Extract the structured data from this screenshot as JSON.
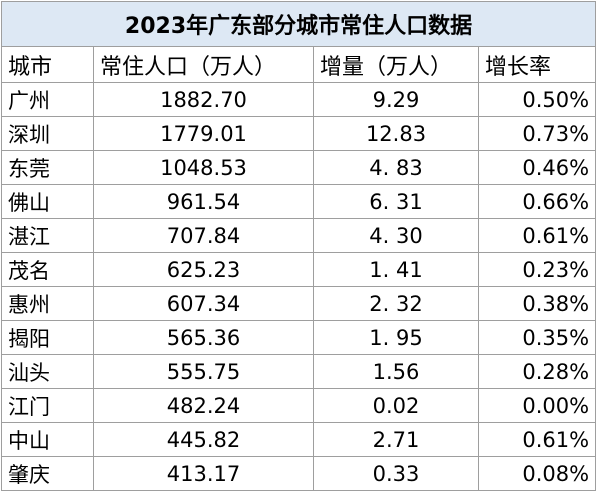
{
  "table": {
    "title": "2023年广东部分城市常住人口数据",
    "header": [
      "城市",
      "常住人口（万人）",
      "增量（万人）",
      "增长率"
    ],
    "rows": [
      [
        "广州",
        "1882.70",
        "9.29",
        "0.50%"
      ],
      [
        "深圳",
        "1779.01",
        "12.83",
        "0.73%"
      ],
      [
        "东莞",
        "1048.53",
        "4. 83",
        "0.46%"
      ],
      [
        "佛山",
        "961.54",
        "6. 31",
        "0.66%"
      ],
      [
        "湛江",
        "707.84",
        "4. 30",
        "0.61%"
      ],
      [
        "茂名",
        "625.23",
        "1. 41",
        "0.23%"
      ],
      [
        "惠州",
        "607.34",
        "2. 32",
        "0.38%"
      ],
      [
        "揭阳",
        "565.36",
        "1. 95",
        "0.35%"
      ],
      [
        "汕头",
        "555.75",
        "1.56",
        "0.28%"
      ],
      [
        "江门",
        "482.24",
        "0.02",
        "0.00%"
      ],
      [
        "中山",
        "445.82",
        "2.71",
        "0.61%"
      ],
      [
        "肇庆",
        "413.17",
        "0.33",
        "0.08%"
      ]
    ]
  }
}
